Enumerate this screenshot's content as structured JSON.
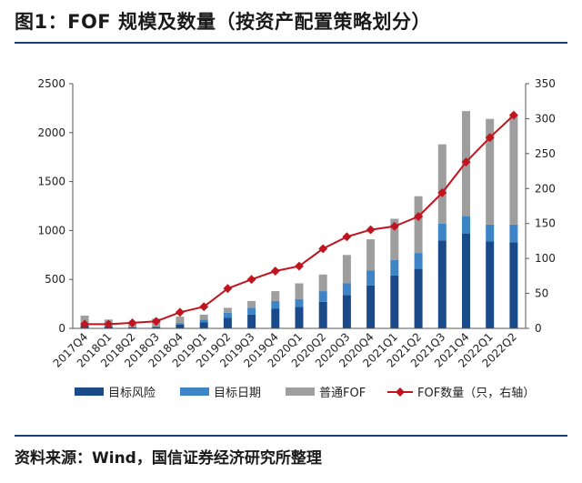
{
  "header": {
    "title": "图1：FOF 规模及数量（按资产配置策略划分）"
  },
  "footer": {
    "source": "资料来源：Wind，国信证券经济研究所整理"
  },
  "colors": {
    "target_risk": "#1b4a8a",
    "target_date": "#3d85c6",
    "ordinary_fof": "#9e9e9e",
    "fof_count": "#c0141e"
  },
  "chart_data": {
    "type": "bar",
    "stacked": true,
    "categories": [
      "2017Q4",
      "2018Q1",
      "2018Q2",
      "2018Q3",
      "2018Q4",
      "2019Q1",
      "2019Q2",
      "2019Q3",
      "2019Q4",
      "2020Q1",
      "2020Q2",
      "2020Q3",
      "2020Q4",
      "2021Q1",
      "2021Q2",
      "2021Q3",
      "2021Q4",
      "2022Q1",
      "2022Q2"
    ],
    "series": [
      {
        "name": "目标风险",
        "type": "bar",
        "axis": "left",
        "values": [
          30,
          20,
          10,
          15,
          40,
          60,
          110,
          140,
          200,
          220,
          270,
          340,
          440,
          540,
          610,
          900,
          970,
          890,
          880
        ]
      },
      {
        "name": "目标日期",
        "type": "bar",
        "axis": "left",
        "values": [
          5,
          5,
          3,
          5,
          15,
          30,
          50,
          70,
          80,
          80,
          110,
          120,
          150,
          160,
          160,
          170,
          180,
          170,
          180
        ]
      },
      {
        "name": "普通FOF",
        "type": "bar",
        "axis": "left",
        "values": [
          95,
          65,
          47,
          80,
          65,
          50,
          50,
          70,
          100,
          160,
          170,
          290,
          320,
          420,
          580,
          810,
          1070,
          1080,
          1110
        ]
      },
      {
        "name": "FOF数量（只，右轴）",
        "type": "line",
        "axis": "right",
        "values": [
          6,
          6,
          8,
          10,
          23,
          31,
          57,
          70,
          82,
          89,
          114,
          131,
          141,
          146,
          160,
          194,
          238,
          273,
          305
        ]
      }
    ],
    "y_left": {
      "range": [
        0,
        2500
      ],
      "ticks": [
        0,
        500,
        1000,
        1500,
        2000,
        2500
      ]
    },
    "y_right": {
      "range": [
        0,
        350
      ],
      "ticks": [
        0,
        50,
        100,
        150,
        200,
        250,
        300,
        350
      ]
    },
    "grid": false,
    "legend_position": "bottom"
  }
}
